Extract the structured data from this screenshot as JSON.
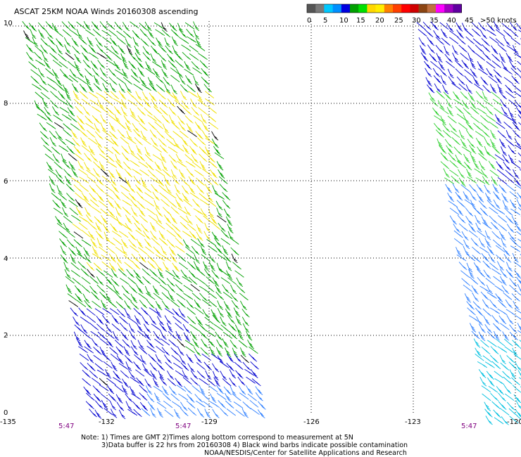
{
  "title": "ASCAT 25KM NOAA Winds 20160308 ascending",
  "colorbar": {
    "colors": [
      "#555555",
      "#7a7a7a",
      "#00c8ff",
      "#0090ff",
      "#0000e0",
      "#00a000",
      "#00e000",
      "#ffd700",
      "#ffee00",
      "#ff8000",
      "#ff4000",
      "#ff0000",
      "#d00000",
      "#8b4513",
      "#c07040",
      "#ff00ff",
      "#a000c0",
      "#6000a0"
    ],
    "labels": [
      "0",
      "5",
      "10",
      "15",
      "20",
      "25",
      "30",
      "35",
      "40",
      "45",
      ">50 knots"
    ]
  },
  "axes": {
    "lon_labels": [
      "-135",
      "-132",
      "-129",
      "-126",
      "-123",
      "-120"
    ],
    "lat_labels": [
      "0",
      "2",
      "4",
      "6",
      "8",
      "10"
    ]
  },
  "times": [
    "5:47",
    "5:47",
    "5:47"
  ],
  "notes": {
    "line1": "Note: 1) Times are GMT 2)Times along bottom correspond to measurement at 5N",
    "line2": "3)Data buffer is 22 hrs from 20160308 4) Black wind barbs indicate possible contamination",
    "line3": "NOAA/NESDIS/Center for Satellite Applications and Research"
  },
  "legend_colors": {
    "cyan": "#00c0e0",
    "light_blue": "#3080ff",
    "blue": "#0000d0",
    "green": "#00a000",
    "light_green": "#30d030",
    "yellow": "#f0e000",
    "black": "#000000"
  }
}
